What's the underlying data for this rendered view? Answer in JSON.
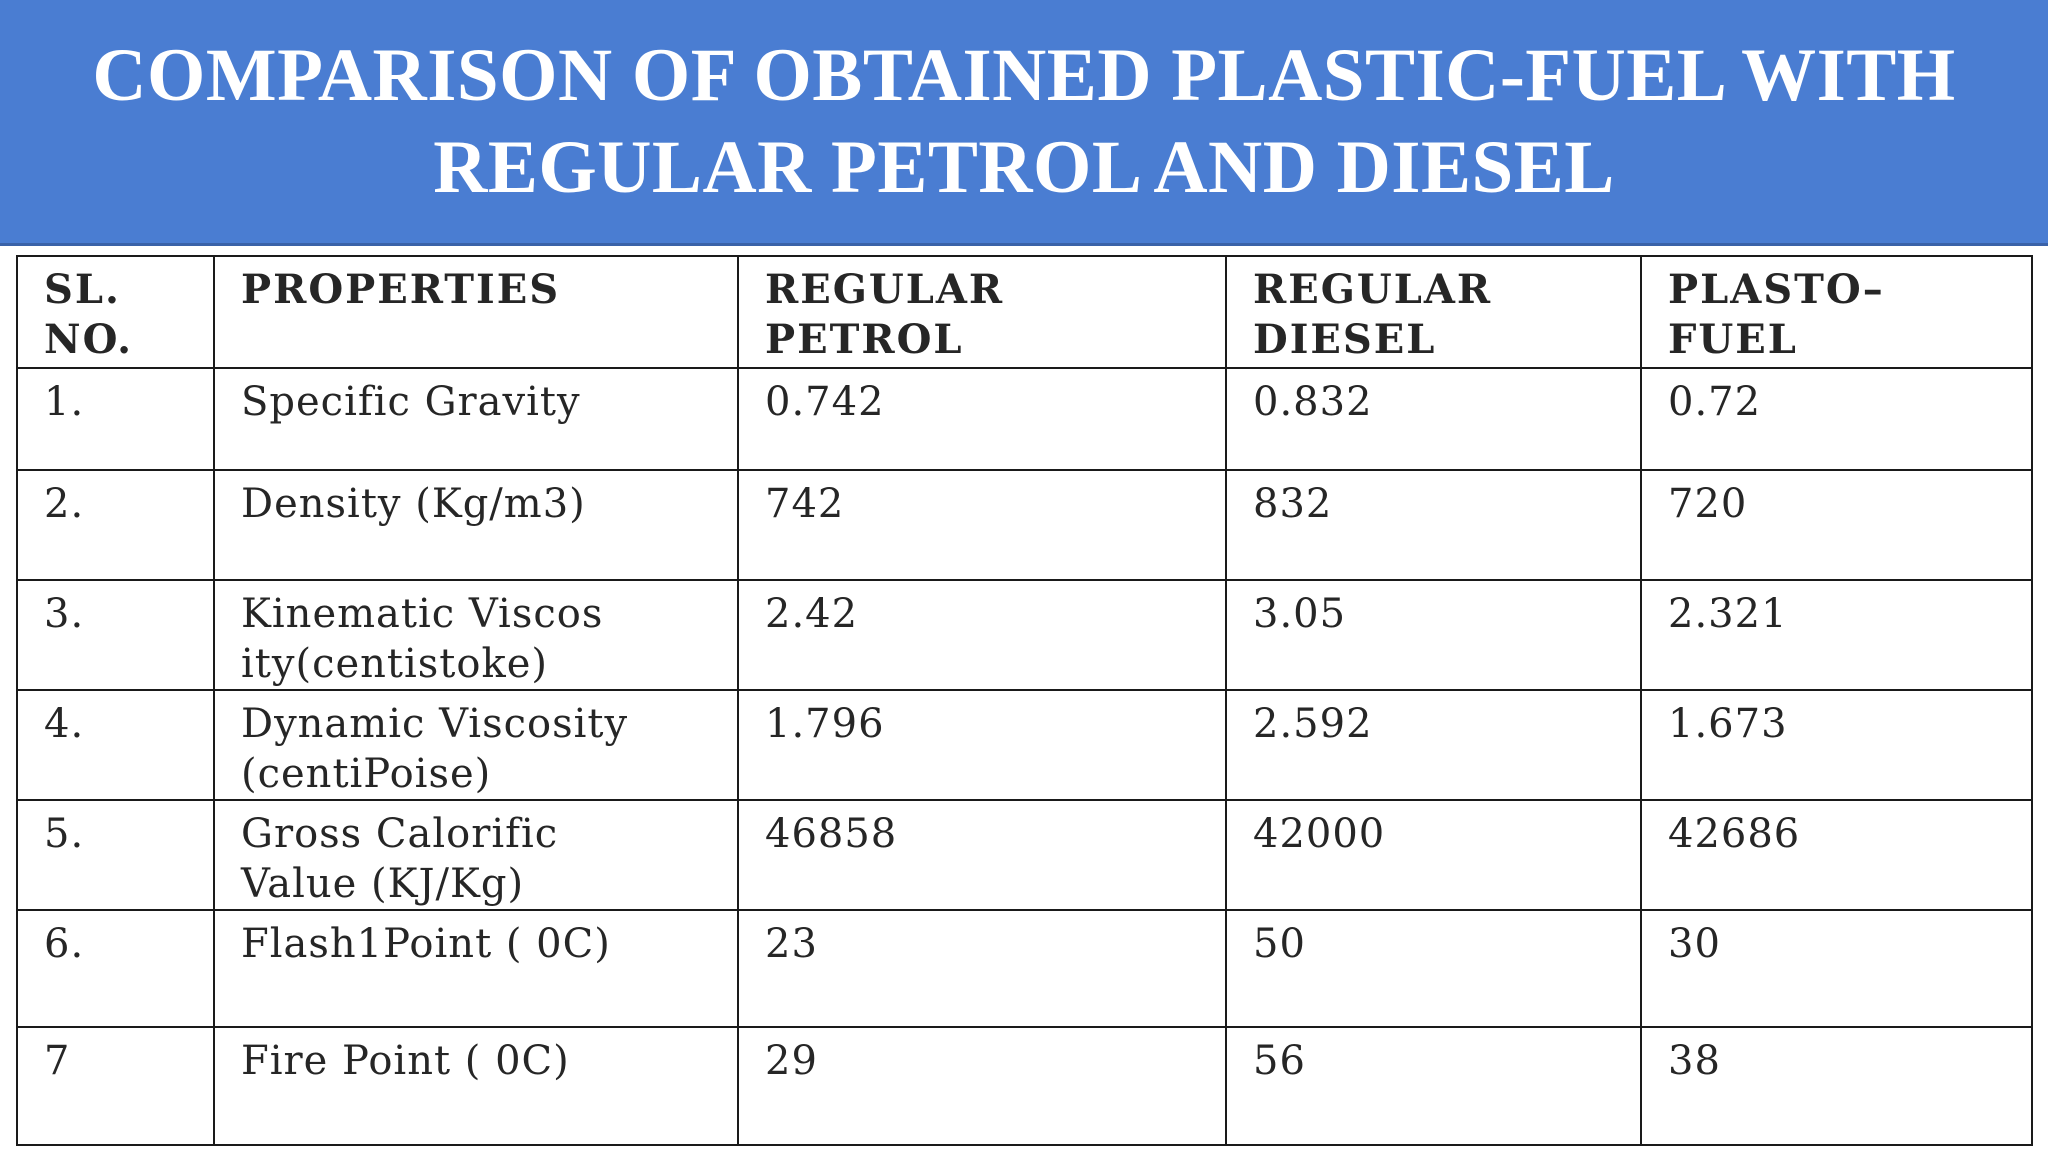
{
  "title": {
    "line1": "COMPARISON OF OBTAINED PLASTIC-FUEL WITH",
    "line2": "REGULAR PETROL AND DIESEL"
  },
  "table": {
    "headers": {
      "sl_line1": "SL.",
      "sl_line2": "NO.",
      "properties": "PROPERTIES",
      "petrol_line1": "REGULAR",
      "petrol_line2": "PETROL",
      "diesel_line1": "REGULAR",
      "diesel_line2": "DIESEL",
      "plasto_line1": "PLASTO–",
      "plasto_line2": "FUEL"
    },
    "rows": [
      {
        "sl": "1.",
        "prop_line1": "Specific Gravity",
        "prop_line2": "",
        "petrol": "0.742",
        "diesel": "0.832",
        "plasto": "0.72"
      },
      {
        "sl": "2.",
        "prop_line1": "Density (Kg/m3)",
        "prop_line2": "",
        "petrol": "742",
        "diesel": "832",
        "plasto": "720"
      },
      {
        "sl": "3.",
        "prop_line1": "Kinematic Viscos",
        "prop_line2": "ity(centistoke)",
        "petrol": "2.42",
        "diesel": "3.05",
        "plasto": "2.321"
      },
      {
        "sl": "4.",
        "prop_line1": "Dynamic Viscosity",
        "prop_line2": "(centiPoise)",
        "petrol": "1.796",
        "diesel": "2.592",
        "plasto": "1.673"
      },
      {
        "sl": "5.",
        "prop_line1": "Gross Calorific",
        "prop_line2": "Value (KJ/Kg)",
        "petrol": "46858",
        "diesel": "42000",
        "plasto": "42686"
      },
      {
        "sl": "6.",
        "prop_line1": "Flash1Point ( 0C)",
        "prop_line2": "",
        "petrol": "23",
        "diesel": "50",
        "plasto": "30"
      },
      {
        "sl": "7",
        "prop_line1": "Fire Point ( 0C)",
        "prop_line2": "",
        "petrol": "29",
        "diesel": "56",
        "plasto": "38"
      }
    ]
  },
  "colors": {
    "title_background": "#4a7dd2",
    "title_text": "#ffffff",
    "table_border": "#1a1a1a",
    "table_text": "#262626"
  }
}
